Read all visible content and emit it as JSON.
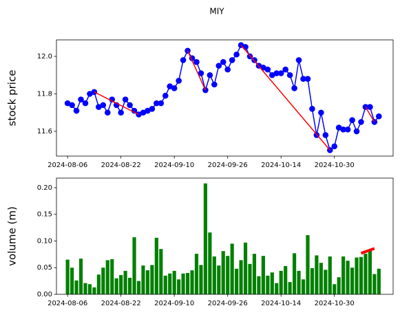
{
  "chart_data": [
    {
      "type": "line",
      "title": "MIY",
      "ylabel": "stock price",
      "color": "#0000ff",
      "label_color": "#0000ff",
      "categories": [
        "2024-08-06",
        "2024-08-07",
        "2024-08-08",
        "2024-08-09",
        "2024-08-12",
        "2024-08-13",
        "2024-08-14",
        "2024-08-15",
        "2024-08-16",
        "2024-08-19",
        "2024-08-20",
        "2024-08-21",
        "2024-08-22",
        "2024-08-23",
        "2024-08-26",
        "2024-08-27",
        "2024-08-28",
        "2024-08-29",
        "2024-08-30",
        "2024-09-03",
        "2024-09-04",
        "2024-09-05",
        "2024-09-06",
        "2024-09-09",
        "2024-09-10",
        "2024-09-11",
        "2024-09-12",
        "2024-09-13",
        "2024-09-16",
        "2024-09-17",
        "2024-09-18",
        "2024-09-19",
        "2024-09-20",
        "2024-09-23",
        "2024-09-24",
        "2024-09-25",
        "2024-09-26",
        "2024-09-27",
        "2024-09-30",
        "2024-10-01",
        "2024-10-02",
        "2024-10-03",
        "2024-10-04",
        "2024-10-07",
        "2024-10-08",
        "2024-10-09",
        "2024-10-10",
        "2024-10-11",
        "2024-10-14",
        "2024-10-15",
        "2024-10-16",
        "2024-10-17",
        "2024-10-18",
        "2024-10-21",
        "2024-10-22",
        "2024-10-23",
        "2024-10-24",
        "2024-10-25",
        "2024-10-28",
        "2024-10-29",
        "2024-10-30",
        "2024-10-31",
        "2024-11-01",
        "2024-11-04",
        "2024-11-05",
        "2024-11-06",
        "2024-11-07",
        "2024-11-08",
        "2024-11-11",
        "2024-11-12",
        "2024-11-13"
      ],
      "values": [
        11.75,
        11.74,
        11.71,
        11.77,
        11.75,
        11.8,
        11.81,
        11.73,
        11.74,
        11.7,
        11.77,
        11.74,
        11.7,
        11.77,
        11.74,
        11.71,
        11.69,
        11.7,
        11.71,
        11.72,
        11.75,
        11.75,
        11.79,
        11.84,
        11.83,
        11.87,
        11.98,
        12.03,
        11.99,
        11.97,
        11.91,
        11.82,
        11.9,
        11.85,
        11.95,
        11.97,
        11.93,
        11.98,
        12.01,
        12.06,
        12.05,
        12.0,
        11.98,
        11.95,
        11.94,
        11.93,
        11.9,
        11.91,
        11.91,
        11.93,
        11.9,
        11.83,
        11.98,
        11.88,
        11.88,
        11.72,
        11.58,
        11.7,
        11.58,
        11.5,
        11.52,
        11.62,
        11.61,
        11.61,
        11.66,
        11.6,
        11.65,
        11.73,
        11.73,
        11.65,
        11.68
      ],
      "trend_color": "#ff0000",
      "trend_lines": [
        {
          "from": "2024-08-14",
          "to": "2024-08-28",
          "values": [
            11.81,
            11.69
          ]
        },
        {
          "from": "2024-09-13",
          "to": "2024-09-19",
          "values": [
            12.03,
            11.82
          ]
        },
        {
          "from": "2024-10-01",
          "to": "2024-10-29",
          "values": [
            12.06,
            11.5
          ]
        },
        {
          "from": "2024-11-08",
          "to": "2024-11-12",
          "values": [
            11.73,
            11.65
          ]
        }
      ],
      "ylim": [
        11.468,
        12.088
      ],
      "yticks": [
        11.6,
        11.8,
        {
          "value": 12,
          "label": "12.0"
        }
      ],
      "xticks": [
        "2024-08-06",
        "2024-08-22",
        "2024-09-10",
        "2024-09-26",
        "2024-10-14",
        "2024-10-30"
      ]
    },
    {
      "type": "bar",
      "ylabel": "volume (m)",
      "color": "#008000",
      "label_color": "#008000",
      "categories": [
        "2024-08-06",
        "2024-08-07",
        "2024-08-08",
        "2024-08-09",
        "2024-08-12",
        "2024-08-13",
        "2024-08-14",
        "2024-08-15",
        "2024-08-16",
        "2024-08-19",
        "2024-08-20",
        "2024-08-21",
        "2024-08-22",
        "2024-08-23",
        "2024-08-26",
        "2024-08-27",
        "2024-08-28",
        "2024-08-29",
        "2024-08-30",
        "2024-09-03",
        "2024-09-04",
        "2024-09-05",
        "2024-09-06",
        "2024-09-09",
        "2024-09-10",
        "2024-09-11",
        "2024-09-12",
        "2024-09-13",
        "2024-09-16",
        "2024-09-17",
        "2024-09-18",
        "2024-09-19",
        "2024-09-20",
        "2024-09-23",
        "2024-09-24",
        "2024-09-25",
        "2024-09-26",
        "2024-09-27",
        "2024-09-30",
        "2024-10-01",
        "2024-10-02",
        "2024-10-03",
        "2024-10-04",
        "2024-10-07",
        "2024-10-08",
        "2024-10-09",
        "2024-10-10",
        "2024-10-11",
        "2024-10-14",
        "2024-10-15",
        "2024-10-16",
        "2024-10-17",
        "2024-10-18",
        "2024-10-21",
        "2024-10-22",
        "2024-10-23",
        "2024-10-24",
        "2024-10-25",
        "2024-10-28",
        "2024-10-29",
        "2024-10-30",
        "2024-10-31",
        "2024-11-01",
        "2024-11-04",
        "2024-11-05",
        "2024-11-06",
        "2024-11-07",
        "2024-11-08",
        "2024-11-11",
        "2024-11-12",
        "2024-11-13"
      ],
      "values": [
        0.065,
        0.05,
        0.026,
        0.067,
        0.021,
        0.019,
        0.013,
        0.037,
        0.05,
        0.064,
        0.066,
        0.03,
        0.036,
        0.044,
        0.031,
        0.107,
        0.025,
        0.054,
        0.045,
        0.055,
        0.106,
        0.085,
        0.035,
        0.039,
        0.044,
        0.028,
        0.039,
        0.04,
        0.045,
        0.076,
        0.055,
        0.208,
        0.116,
        0.071,
        0.054,
        0.081,
        0.072,
        0.095,
        0.048,
        0.064,
        0.097,
        0.057,
        0.076,
        0.034,
        0.072,
        0.035,
        0.041,
        0.021,
        0.044,
        0.053,
        0.023,
        0.077,
        0.044,
        0.028,
        0.111,
        0.049,
        0.073,
        0.059,
        0.046,
        0.071,
        0.019,
        0.032,
        0.071,
        0.063,
        0.05,
        0.069,
        0.07,
        0.076,
        0.084,
        0.038,
        0.048
      ],
      "trend_color": "#ff0000",
      "trend_lines": [
        {
          "from": "2024-11-07",
          "to": "2024-11-12",
          "values": [
            0.077,
            0.086
          ]
        }
      ],
      "ylim": [
        0,
        0.218
      ],
      "yticks": [
        {
          "value": 0,
          "label": "0.00"
        },
        0.05,
        {
          "value": 0.1,
          "label": "0.10"
        },
        0.15,
        {
          "value": 0.2,
          "label": "0.20"
        }
      ],
      "xticks": [
        "2024-08-06",
        "2024-08-22",
        "2024-09-10",
        "2024-09-26",
        "2024-10-14",
        "2024-10-30"
      ]
    }
  ]
}
